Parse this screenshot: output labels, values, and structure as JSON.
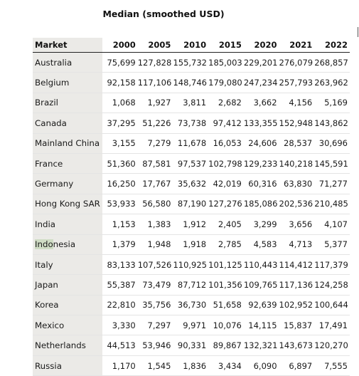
{
  "title": "Median (smoothed USD)",
  "table": {
    "header": [
      "Market",
      "2000",
      "2005",
      "2010",
      "2015",
      "2020",
      "2021",
      "2022"
    ],
    "rows": [
      {
        "market": "Australia",
        "values": [
          "75,699",
          "127,828",
          "155,732",
          "185,003",
          "229,201",
          "276,079",
          "268,857"
        ]
      },
      {
        "market": "Belgium",
        "values": [
          "92,158",
          "117,106",
          "148,746",
          "179,080",
          "247,234",
          "257,793",
          "263,962"
        ]
      },
      {
        "market": "Brazil",
        "values": [
          "1,068",
          "1,927",
          "3,811",
          "2,682",
          "3,662",
          "4,156",
          "5,169"
        ]
      },
      {
        "market": "Canada",
        "values": [
          "37,295",
          "51,226",
          "73,738",
          "97,412",
          "133,355",
          "152,948",
          "143,862"
        ]
      },
      {
        "market": "Mainland China",
        "values": [
          "3,155",
          "7,279",
          "11,678",
          "16,053",
          "24,606",
          "28,537",
          "30,696"
        ]
      },
      {
        "market": "France",
        "values": [
          "51,360",
          "87,581",
          "97,537",
          "102,798",
          "129,233",
          "140,218",
          "145,591"
        ]
      },
      {
        "market": "Germany",
        "values": [
          "16,250",
          "17,767",
          "35,632",
          "42,019",
          "60,316",
          "63,830",
          "71,277"
        ]
      },
      {
        "market": "Hong Kong SAR",
        "values": [
          "53,933",
          "56,580",
          "87,190",
          "127,276",
          "185,086",
          "202,536",
          "210,485"
        ]
      },
      {
        "market": "India",
        "values": [
          "1,153",
          "1,383",
          "1,912",
          "2,405",
          "3,299",
          "3,656",
          "4,107"
        ]
      },
      {
        "market": "Indonesia",
        "market_hl": "Indo",
        "market_rest": "nesia",
        "values": [
          "1,379",
          "1,948",
          "1,918",
          "2,785",
          "4,583",
          "4,713",
          "5,377"
        ]
      },
      {
        "market": "Italy",
        "values": [
          "83,133",
          "107,526",
          "110,925",
          "101,125",
          "110,443",
          "114,412",
          "117,379"
        ]
      },
      {
        "market": "Japan",
        "values": [
          "55,387",
          "73,479",
          "87,712",
          "101,356",
          "109,765",
          "117,136",
          "124,258"
        ]
      },
      {
        "market": "Korea",
        "values": [
          "22,810",
          "35,756",
          "36,730",
          "51,658",
          "92,639",
          "102,952",
          "100,644"
        ]
      },
      {
        "market": "Mexico",
        "values": [
          "3,330",
          "7,297",
          "9,971",
          "10,076",
          "14,115",
          "15,837",
          "17,491"
        ]
      },
      {
        "market": "Netherlands",
        "values": [
          "44,513",
          "53,946",
          "90,331",
          "89,867",
          "132,321",
          "143,673",
          "120,270"
        ]
      },
      {
        "market": "Russia",
        "values": [
          "1,170",
          "1,545",
          "1,836",
          "3,434",
          "6,090",
          "6,897",
          "7,555"
        ]
      }
    ]
  }
}
